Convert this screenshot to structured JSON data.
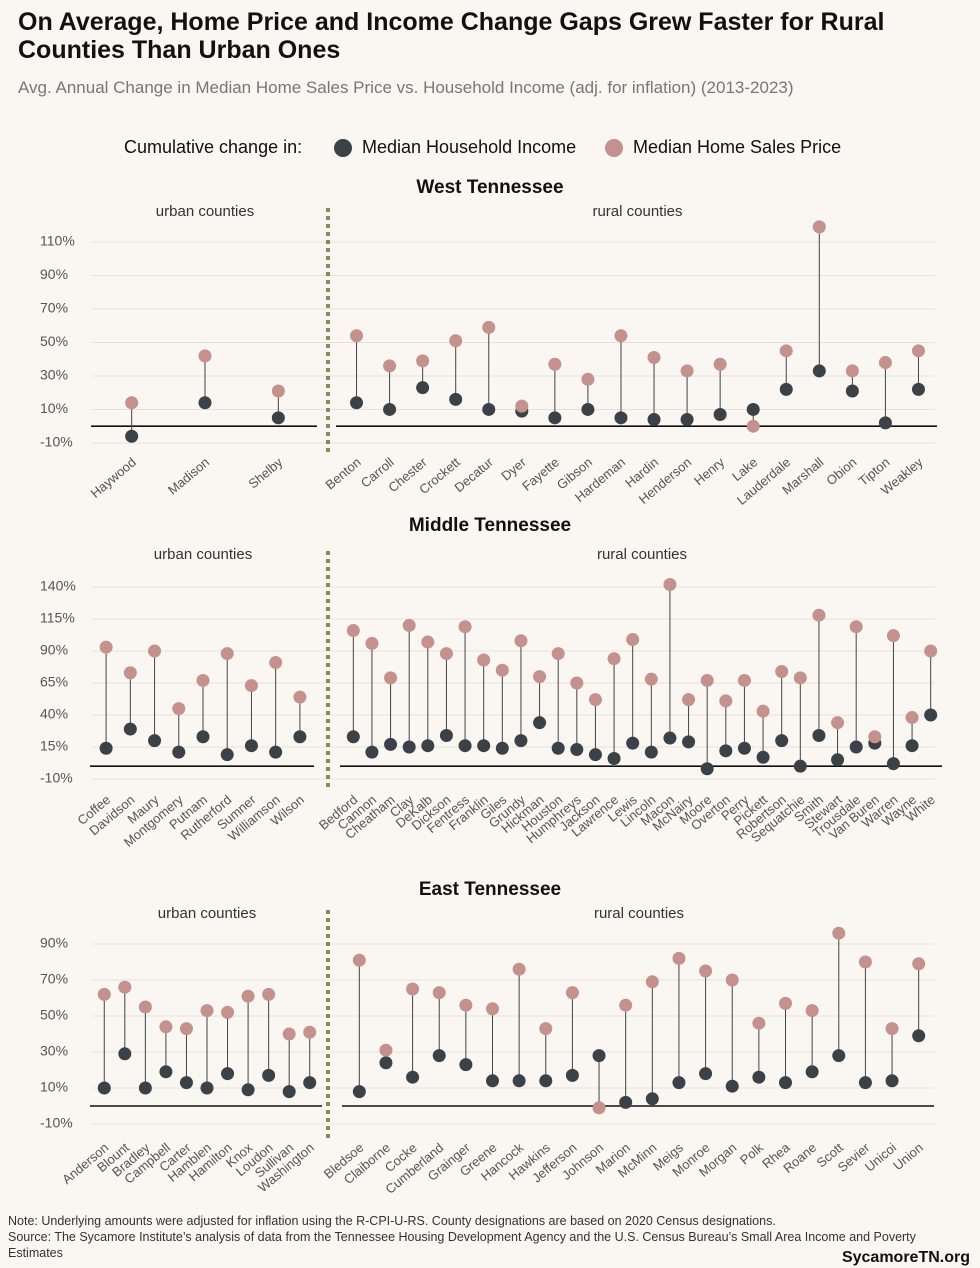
{
  "title": "On Average, Home Price and Income Change Gaps Grew Faster for Rural Counties Than Urban Ones",
  "subtitle": "Avg. Annual Change in Median Home Sales Price vs. Household Income (adj. for inflation) (2013-2023)",
  "legend_title": "Cumulative change in:",
  "note": "Note: Underlying amounts were adjusted for inflation using the R-CPI-U-RS. County designations are based on 2020 Census designations.",
  "source": "Source: The Sycamore Institute’s analysis of data from the Tennessee Housing Development Agency and the U.S. Census Bureau’s Small Area Income and Poverty Estimates",
  "brand": "SycamoreTN.org",
  "chart_data": [
    {
      "type": "dumbbell",
      "title": "West Tennessee",
      "subtitle": "urban counties",
      "categories": [
        "Haywood",
        "Madison",
        "Shelby"
      ],
      "series": [
        {
          "name": "Median Household Income",
          "color": "#3b4247",
          "values": [
            -6,
            14,
            5
          ]
        },
        {
          "name": "Median Home Sales Price",
          "color": "#c4918d",
          "values": [
            14,
            42,
            21
          ]
        }
      ],
      "ylim": [
        -16,
        124
      ],
      "yticks": [
        {
          "value": -10,
          "label": "-10%"
        },
        {
          "value": 10,
          "label": "10%"
        },
        {
          "value": 30,
          "label": "30%"
        },
        {
          "value": 50,
          "label": "50%"
        },
        {
          "value": 70,
          "label": "70%"
        },
        {
          "value": 90,
          "label": "90%"
        },
        {
          "value": 110,
          "label": "110%"
        }
      ],
      "grid": true
    },
    {
      "type": "dumbbell",
      "subtitle": "rural counties",
      "categories": [
        "Benton",
        "Carroll",
        "Chester",
        "Crockett",
        "Decatur",
        "Dyer",
        "Fayette",
        "Gibson",
        "Hardeman",
        "Hardin",
        "Henderson",
        "Henry",
        "Lake",
        "Lauderdale",
        "Marshall",
        "Obion",
        "Tipton",
        "Weakley"
      ],
      "series": [
        {
          "name": "Median Household Income",
          "color": "#3b4247",
          "values": [
            14,
            10,
            23,
            16,
            10,
            9,
            5,
            10,
            5,
            4,
            4,
            7,
            10,
            22,
            33,
            21,
            2,
            22
          ]
        },
        {
          "name": "Median Home Sales Price",
          "color": "#c4918d",
          "values": [
            54,
            36,
            39,
            51,
            59,
            12,
            37,
            28,
            54,
            41,
            33,
            37,
            0,
            45,
            119,
            33,
            38,
            45
          ]
        }
      ],
      "ylim": [
        -16,
        124
      ]
    },
    {
      "type": "dumbbell",
      "title": "Middle Tennessee",
      "subtitle": "urban counties",
      "categories": [
        "Coffee",
        "Davidson",
        "Maury",
        "Montgomery",
        "Putnam",
        "Rutherford",
        "Sumner",
        "Williamson",
        "Wilson"
      ],
      "series": [
        {
          "name": "Median Household Income",
          "color": "#3b4247",
          "values": [
            14,
            29,
            20,
            11,
            23,
            9,
            16,
            11,
            23
          ]
        },
        {
          "name": "Median Home Sales Price",
          "color": "#c4918d",
          "values": [
            93,
            73,
            90,
            45,
            67,
            88,
            63,
            81,
            54
          ]
        }
      ],
      "ylim": [
        -19,
        148
      ],
      "yticks": [
        {
          "value": -10,
          "label": "-10%"
        },
        {
          "value": 15,
          "label": "15%"
        },
        {
          "value": 40,
          "label": "40%"
        },
        {
          "value": 65,
          "label": "65%"
        },
        {
          "value": 90,
          "label": "90%"
        },
        {
          "value": 115,
          "label": "115%"
        },
        {
          "value": 140,
          "label": "140%"
        }
      ],
      "grid": true
    },
    {
      "type": "dumbbell",
      "subtitle": "rural counties",
      "categories": [
        "Bedford",
        "Cannon",
        "Cheatham",
        "Clay",
        "DeKalb",
        "Dickson",
        "Fentress",
        "Franklin",
        "Giles",
        "Grundy",
        "Hickman",
        "Houston",
        "Humphreys",
        "Jackson",
        "Lawrence",
        "Lewis",
        "Lincoln",
        "Macon",
        "McNairy",
        "Moore",
        "Overton",
        "Perry",
        "Pickett",
        "Robertson",
        "Sequatchie",
        "Smith",
        "Stewart",
        "Trousdale",
        "Van Buren",
        "Warren",
        "Wayne",
        "White"
      ],
      "series": [
        {
          "name": "Median Household Income",
          "color": "#3b4247",
          "values": [
            23,
            11,
            17,
            15,
            16,
            24,
            16,
            16,
            14,
            20,
            34,
            14,
            13,
            9,
            6,
            18,
            11,
            22,
            19,
            -2,
            12,
            14,
            7,
            20,
            0,
            24,
            5,
            15,
            18,
            2,
            16,
            40
          ]
        },
        {
          "name": "Median Home Sales Price",
          "color": "#c4918d",
          "values": [
            106,
            96,
            69,
            110,
            97,
            88,
            109,
            83,
            75,
            98,
            70,
            88,
            65,
            52,
            84,
            99,
            68,
            142,
            52,
            67,
            51,
            67,
            43,
            74,
            69,
            118,
            34,
            109,
            23,
            102,
            38,
            90
          ]
        }
      ],
      "ylim": [
        -19,
        148
      ]
    },
    {
      "type": "dumbbell",
      "title": "East Tennessee",
      "subtitle": "urban counties",
      "categories": [
        "Anderson",
        "Blount",
        "Bradley",
        "Campbell",
        "Carter",
        "Hamblen",
        "Hamilton",
        "Knox",
        "Loudon",
        "Sullivan",
        "Washington"
      ],
      "series": [
        {
          "name": "Median Household Income",
          "color": "#3b4247",
          "values": [
            10,
            29,
            10,
            19,
            13,
            10,
            18,
            9,
            17,
            8,
            13
          ]
        },
        {
          "name": "Median Home Sales Price",
          "color": "#c4918d",
          "values": [
            62,
            66,
            55,
            44,
            43,
            53,
            52,
            61,
            62,
            40,
            41
          ]
        }
      ],
      "ylim": [
        -18,
        98
      ],
      "yticks": [
        {
          "value": -10,
          "label": "-10%"
        },
        {
          "value": 10,
          "label": "10%"
        },
        {
          "value": 30,
          "label": "30%"
        },
        {
          "value": 50,
          "label": "50%"
        },
        {
          "value": 70,
          "label": "70%"
        },
        {
          "value": 90,
          "label": "90%"
        }
      ],
      "grid": true
    },
    {
      "type": "dumbbell",
      "subtitle": "rural counties",
      "categories": [
        "Bledsoe",
        "Claiborne",
        "Cocke",
        "Cumberland",
        "Grainger",
        "Greene",
        "Hancock",
        "Hawkins",
        "Jefferson",
        "Johnson",
        "Marion",
        "McMinn",
        "Meigs",
        "Monroe",
        "Morgan",
        "Polk",
        "Rhea",
        "Roane",
        "Scott",
        "Sevier",
        "Unicoi",
        "Union"
      ],
      "series": [
        {
          "name": "Median Household Income",
          "color": "#3b4247",
          "values": [
            8,
            24,
            16,
            28,
            23,
            14,
            14,
            14,
            17,
            28,
            2,
            4,
            13,
            18,
            11,
            16,
            13,
            19,
            28,
            13,
            14,
            39
          ]
        },
        {
          "name": "Median Home Sales Price",
          "color": "#c4918d",
          "values": [
            81,
            31,
            65,
            63,
            56,
            54,
            76,
            43,
            63,
            -1,
            56,
            69,
            82,
            75,
            70,
            46,
            57,
            53,
            96,
            80,
            43,
            79
          ]
        }
      ],
      "ylim": [
        -18,
        98
      ]
    }
  ]
}
